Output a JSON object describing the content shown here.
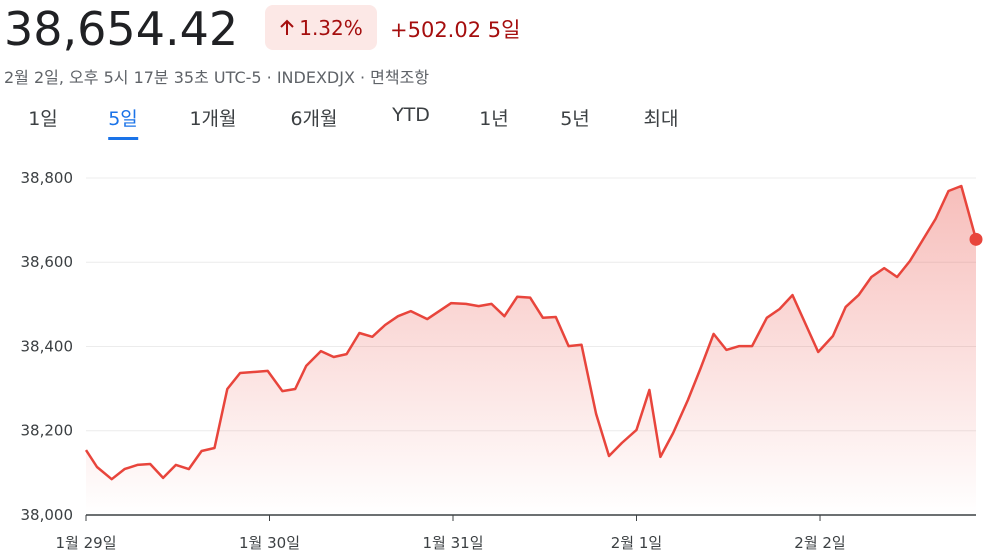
{
  "header": {
    "price": "38,654.42",
    "change_pct": "1.32%",
    "change_abs": "+502.02",
    "period": "5일",
    "subtitle": "2월 2일, 오후 5시 17분 35초 UTC-5 · INDEXDJX · 면책조항"
  },
  "tabs": [
    "1일",
    "5일",
    "1개월",
    "6개월",
    "YTD",
    "1년",
    "5년",
    "최대"
  ],
  "active_tab": 1,
  "chart_data": {
    "type": "line",
    "color": "#e8453c",
    "grid": true,
    "x": [
      0,
      0.06,
      0.14,
      0.21,
      0.28,
      0.35,
      0.42,
      0.49,
      0.56,
      0.63,
      0.7,
      0.77,
      0.84,
      0.99,
      1.07,
      1.14,
      1.2,
      1.28,
      1.35,
      1.42,
      1.49,
      1.56,
      1.63,
      1.7,
      1.77,
      1.86,
      1.99,
      2.07,
      2.14,
      2.21,
      2.28,
      2.35,
      2.42,
      2.49,
      2.56,
      2.63,
      2.7,
      2.78,
      2.85,
      2.92,
      3.0,
      3.07,
      3.13,
      3.2,
      3.28,
      3.35,
      3.42,
      3.49,
      3.56,
      3.63,
      3.71,
      3.78,
      3.85,
      3.99,
      4.07,
      4.14,
      4.21,
      4.28,
      4.35,
      4.42,
      4.49,
      4.56,
      4.63,
      4.7,
      4.77,
      4.85
    ],
    "values": [
      38154,
      38114,
      38085,
      38109,
      38119,
      38121,
      38088,
      38119,
      38109,
      38152,
      38159,
      38299,
      38337,
      38342,
      38294,
      38299,
      38354,
      38389,
      38375,
      38382,
      38432,
      38423,
      38451,
      38472,
      38484,
      38465,
      38503,
      38501,
      38496,
      38501,
      38472,
      38518,
      38516,
      38468,
      38470,
      38401,
      38404,
      38240,
      38140,
      38171,
      38202,
      38297,
      38138,
      38195,
      38273,
      38349,
      38430,
      38392,
      38401,
      38401,
      38468,
      38489,
      38522,
      38387,
      38425,
      38494,
      38522,
      38565,
      38586,
      38565,
      38603,
      38653,
      38703,
      38769,
      38781,
      38654.42
    ],
    "xlim": [
      0,
      4.85
    ],
    "xticks": [
      {
        "value": 0,
        "label": "1월 29일"
      },
      {
        "value": 1,
        "label": "1월 30일"
      },
      {
        "value": 2,
        "label": "1월 31일"
      },
      {
        "value": 3,
        "label": "2월 1일"
      },
      {
        "value": 4,
        "label": "2월 2일"
      }
    ],
    "ylim": [
      38000,
      38870
    ],
    "yticks": [
      {
        "value": 38000,
        "label": "38,000"
      },
      {
        "value": 38200,
        "label": "38,200"
      },
      {
        "value": 38400,
        "label": "38,400"
      },
      {
        "value": 38600,
        "label": "38,600"
      },
      {
        "value": 38800,
        "label": "38,800"
      }
    ]
  }
}
